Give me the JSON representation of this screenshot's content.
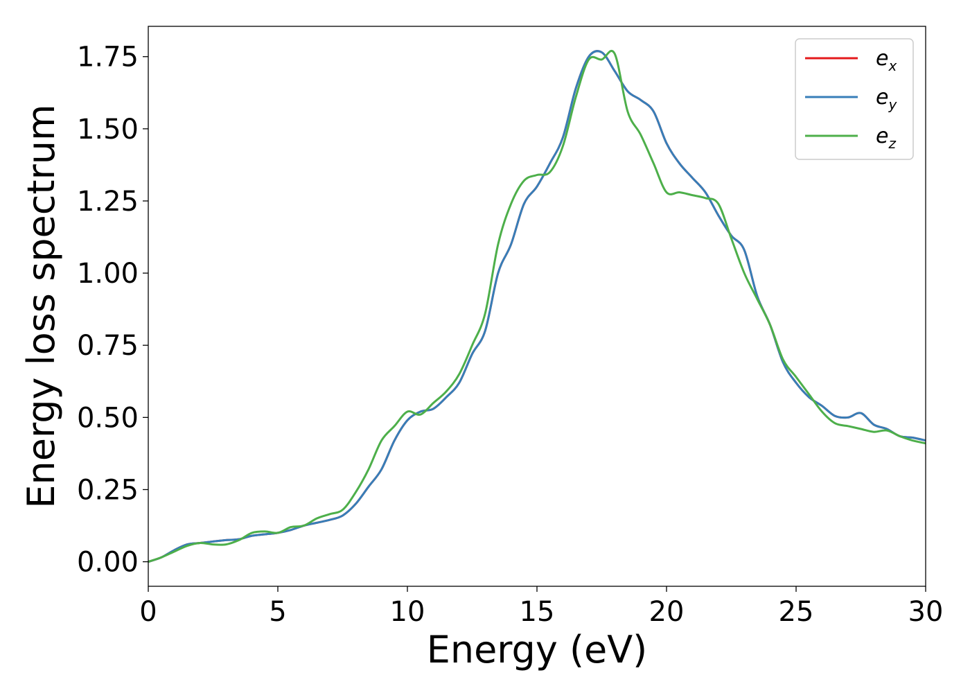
{
  "chart_data": {
    "type": "line",
    "xlabel": "Energy (eV)",
    "ylabel": "Energy loss spectrum",
    "xlim": [
      0,
      30
    ],
    "ylim": [
      -0.085,
      1.855
    ],
    "xticks": [
      0,
      5,
      10,
      15,
      20,
      25,
      30
    ],
    "xtick_labels": [
      "0",
      "5",
      "10",
      "15",
      "20",
      "25",
      "30"
    ],
    "yticks": [
      0,
      0.25,
      0.5,
      0.75,
      1.0,
      1.25,
      1.5,
      1.75
    ],
    "ytick_labels": [
      "0.00",
      "0.25",
      "0.50",
      "0.75",
      "1.00",
      "1.25",
      "1.50",
      "1.75"
    ],
    "grid": false,
    "legend_position": "top-right",
    "series": [
      {
        "name": "e",
        "subscript": "x",
        "color": "#e41a1c",
        "x": [
          0,
          0.5,
          1,
          1.5,
          2,
          2.5,
          3,
          3.5,
          4,
          4.5,
          5,
          5.5,
          6,
          6.5,
          7,
          7.5,
          8,
          8.5,
          9,
          9.5,
          10,
          10.5,
          11,
          11.5,
          12,
          12.5,
          13,
          13.5,
          14,
          14.5,
          15,
          15.5,
          16,
          16.5,
          17,
          17.5,
          18,
          18.5,
          19,
          19.5,
          20,
          20.5,
          21,
          21.5,
          22,
          22.5,
          23,
          23.5,
          24,
          24.5,
          25,
          25.5,
          26,
          26.5,
          27,
          27.5,
          28,
          28.5,
          29,
          29.5,
          30
        ],
        "y": [
          0,
          0.015,
          0.04,
          0.06,
          0.065,
          0.07,
          0.075,
          0.078,
          0.09,
          0.095,
          0.1,
          0.11,
          0.125,
          0.135,
          0.145,
          0.16,
          0.2,
          0.26,
          0.32,
          0.42,
          0.49,
          0.52,
          0.53,
          0.57,
          0.62,
          0.72,
          0.8,
          1.0,
          1.1,
          1.24,
          1.3,
          1.38,
          1.47,
          1.64,
          1.75,
          1.765,
          1.7,
          1.63,
          1.6,
          1.56,
          1.45,
          1.38,
          1.33,
          1.28,
          1.2,
          1.13,
          1.08,
          0.92,
          0.82,
          0.69,
          0.62,
          0.57,
          0.54,
          0.505,
          0.5,
          0.515,
          0.475,
          0.46,
          0.435,
          0.43,
          0.42
        ]
      },
      {
        "name": "e",
        "subscript": "y",
        "color": "#377eb8",
        "x": [
          0,
          0.5,
          1,
          1.5,
          2,
          2.5,
          3,
          3.5,
          4,
          4.5,
          5,
          5.5,
          6,
          6.5,
          7,
          7.5,
          8,
          8.5,
          9,
          9.5,
          10,
          10.5,
          11,
          11.5,
          12,
          12.5,
          13,
          13.5,
          14,
          14.5,
          15,
          15.5,
          16,
          16.5,
          17,
          17.5,
          18,
          18.5,
          19,
          19.5,
          20,
          20.5,
          21,
          21.5,
          22,
          22.5,
          23,
          23.5,
          24,
          24.5,
          25,
          25.5,
          26,
          26.5,
          27,
          27.5,
          28,
          28.5,
          29,
          29.5,
          30
        ],
        "y": [
          0,
          0.015,
          0.04,
          0.06,
          0.065,
          0.07,
          0.075,
          0.078,
          0.09,
          0.095,
          0.1,
          0.11,
          0.125,
          0.135,
          0.145,
          0.16,
          0.2,
          0.26,
          0.32,
          0.42,
          0.49,
          0.52,
          0.53,
          0.57,
          0.62,
          0.72,
          0.8,
          1.0,
          1.1,
          1.24,
          1.3,
          1.38,
          1.47,
          1.64,
          1.75,
          1.765,
          1.7,
          1.63,
          1.6,
          1.56,
          1.45,
          1.38,
          1.33,
          1.28,
          1.2,
          1.13,
          1.08,
          0.92,
          0.82,
          0.69,
          0.62,
          0.57,
          0.54,
          0.505,
          0.5,
          0.515,
          0.475,
          0.46,
          0.435,
          0.43,
          0.42
        ]
      },
      {
        "name": "e",
        "subscript": "z",
        "color": "#4daf4a",
        "x": [
          0,
          0.5,
          1,
          1.5,
          2,
          2.5,
          3,
          3.5,
          4,
          4.5,
          5,
          5.5,
          6,
          6.5,
          7,
          7.5,
          8,
          8.5,
          9,
          9.5,
          10,
          10.5,
          11,
          11.5,
          12,
          12.5,
          13,
          13.5,
          14,
          14.5,
          15,
          15.5,
          16,
          16.5,
          17,
          17.5,
          18,
          18.5,
          19,
          19.5,
          20,
          20.5,
          21,
          21.5,
          22,
          22.5,
          23,
          23.5,
          24,
          24.5,
          25,
          25.5,
          26,
          26.5,
          27,
          27.5,
          28,
          28.5,
          29,
          29.5,
          30
        ],
        "y": [
          0,
          0.015,
          0.035,
          0.055,
          0.065,
          0.06,
          0.06,
          0.075,
          0.1,
          0.105,
          0.1,
          0.12,
          0.125,
          0.15,
          0.165,
          0.18,
          0.24,
          0.32,
          0.42,
          0.47,
          0.52,
          0.51,
          0.55,
          0.59,
          0.65,
          0.75,
          0.86,
          1.1,
          1.24,
          1.32,
          1.34,
          1.35,
          1.44,
          1.61,
          1.74,
          1.74,
          1.76,
          1.56,
          1.48,
          1.38,
          1.28,
          1.28,
          1.27,
          1.26,
          1.24,
          1.12,
          1.0,
          0.91,
          0.82,
          0.7,
          0.64,
          0.58,
          0.52,
          0.48,
          0.47,
          0.46,
          0.45,
          0.455,
          0.435,
          0.42,
          0.41
        ]
      }
    ]
  }
}
